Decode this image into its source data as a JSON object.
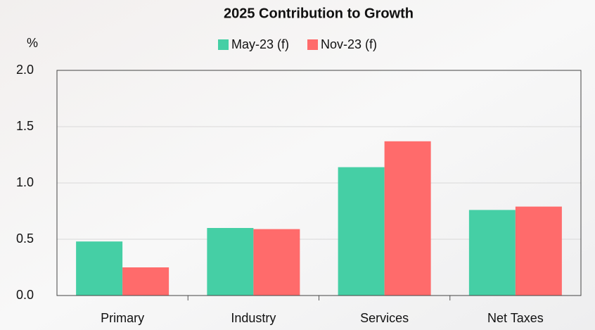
{
  "chart_data": {
    "type": "bar",
    "title": "2025 Contribution to Growth",
    "y_label": "%",
    "categories": [
      "Primary",
      "Industry",
      "Services",
      "Net Taxes"
    ],
    "series": [
      {
        "name": "May-23 (f)",
        "color": "#45cfa5",
        "values": [
          0.48,
          0.6,
          1.14,
          0.76
        ]
      },
      {
        "name": "Nov-23 (f)",
        "color": "#ff6b6b",
        "values": [
          0.25,
          0.59,
          1.37,
          0.79
        ]
      }
    ],
    "ylim": [
      0,
      2
    ],
    "yticks": [
      {
        "value": 0,
        "label": "0.0"
      },
      {
        "value": 0.5,
        "label": "0.5"
      },
      {
        "value": 1,
        "label": "1.0"
      },
      {
        "value": 1.5,
        "label": "1.5"
      },
      {
        "value": 2,
        "label": "2.0"
      }
    ],
    "grid": true,
    "legend": "top"
  }
}
